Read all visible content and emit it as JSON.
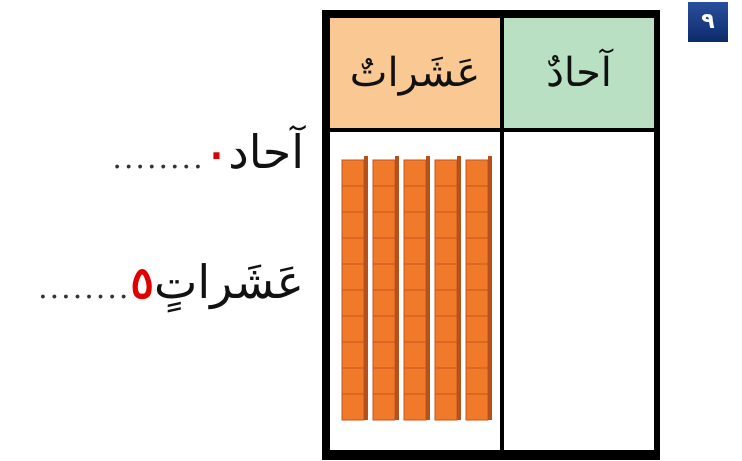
{
  "badge": "٩",
  "table": {
    "headers": [
      "عَشَراتٌ",
      "آحادٌ"
    ]
  },
  "answers": [
    {
      "label": "آحاد",
      "dots": "........",
      "digit": "٠"
    },
    {
      "label": "عَشَراتٍ",
      "dots": "........",
      "digit": "٥"
    }
  ]
}
